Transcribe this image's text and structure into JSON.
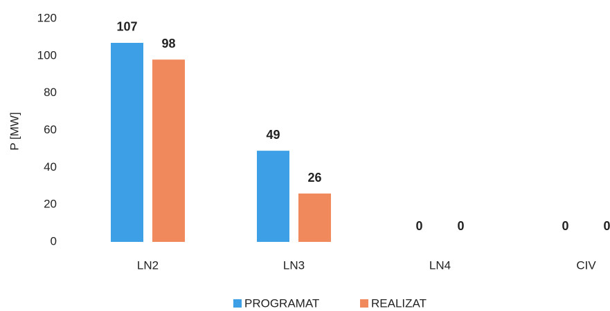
{
  "chart_data": {
    "type": "bar",
    "y_label": "P [MW]",
    "categories": [
      "LN2",
      "LN3",
      "LN4",
      "CIV"
    ],
    "series": [
      {
        "name": "PROGRAMAT",
        "color": "#3d9fe6",
        "values": [
          107,
          49,
          0,
          0
        ]
      },
      {
        "name": "REALIZAT",
        "color": "#f08a5d",
        "values": [
          98,
          26,
          0,
          0
        ]
      }
    ],
    "ylim": [
      0,
      120
    ],
    "yticks": [
      0,
      20,
      40,
      60,
      80,
      100,
      120
    ],
    "grid": false,
    "legend": "bottom"
  }
}
